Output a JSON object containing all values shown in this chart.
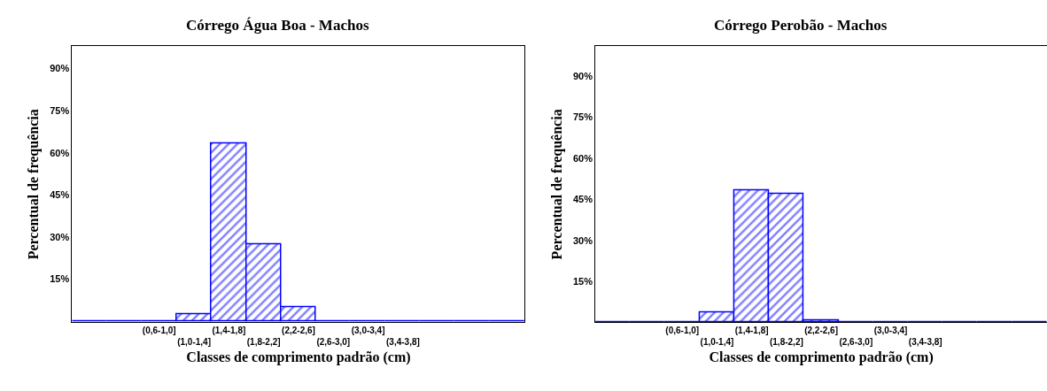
{
  "chart_data": [
    {
      "type": "bar",
      "title": "Córrego Água Boa - Machos",
      "xlabel": "Classes de comprimento padrão (cm)",
      "ylabel": "Percentual de frequência",
      "categories": [
        null,
        null,
        "(0,6-1,0]",
        "(1,0-1,4]",
        "(1,4-1,8]",
        "(1,8-2,2]",
        "(2,2-2,6]",
        "(2,6-3,0]",
        "(3,0-3,4]",
        "(3,4-3,8]",
        null,
        null,
        null
      ],
      "values": [
        0,
        0,
        0,
        2.4,
        63.3,
        27.5,
        4.8,
        0,
        0,
        0,
        0,
        0,
        0
      ],
      "color": "#0000ff",
      "ylim": [
        -0.5,
        98
      ],
      "yticks": [
        {
          "value": 15,
          "label": "15%"
        },
        {
          "value": 30,
          "label": "30%"
        },
        {
          "value": 45,
          "label": "45%"
        },
        {
          "value": 60,
          "label": "60%"
        },
        {
          "value": 75,
          "label": "75%"
        },
        {
          "value": 90,
          "label": "90%"
        }
      ]
    },
    {
      "type": "bar",
      "title": "Córrego Perobão - Machos",
      "xlabel": "Classes de comprimento padrão (cm)",
      "ylabel": "Percentual de frequência",
      "categories": [
        null,
        null,
        "(0,6-1,0]",
        "(1,0-1,4]",
        "(1,4-1,8]",
        "(1,8-2,2]",
        "(2,2-2,6]",
        "(2,6-3,0]",
        "(3,0-3,4]",
        "(3,4-3,8]",
        null,
        null,
        null
      ],
      "values": [
        0,
        0,
        0.2,
        3.6,
        48.3,
        47.0,
        0.7,
        0.2,
        0,
        0,
        0,
        0,
        0
      ],
      "color": "#0000ff",
      "ylim": [
        0,
        101
      ],
      "yticks": [
        {
          "value": 15,
          "label": "15%"
        },
        {
          "value": 30,
          "label": "30%"
        },
        {
          "value": 45,
          "label": "45%"
        },
        {
          "value": 60,
          "label": "60%"
        },
        {
          "value": 75,
          "label": "75%"
        },
        {
          "value": 90,
          "label": "90%"
        }
      ]
    }
  ]
}
